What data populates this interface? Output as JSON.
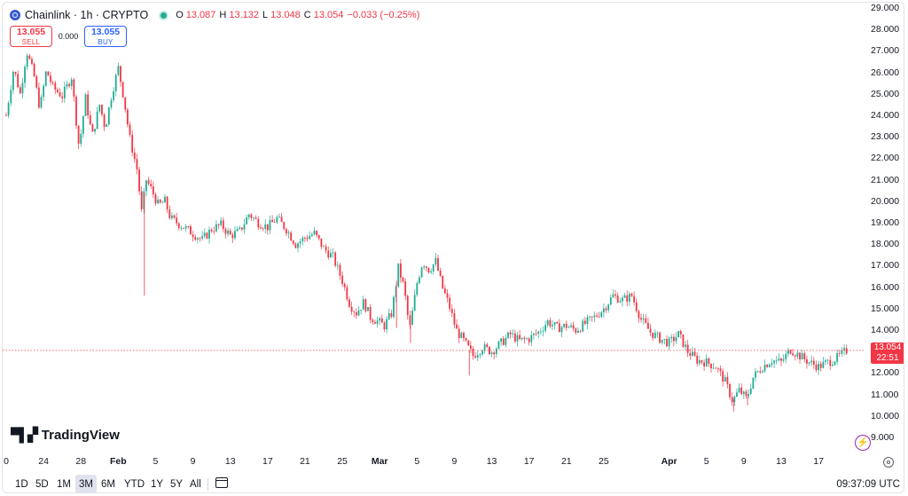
{
  "header": {
    "symbol": "Chainlink · 1h · CRYPTO",
    "ohlc": [
      {
        "label": "O",
        "value": "13.087"
      },
      {
        "label": "H",
        "value": "13.132"
      },
      {
        "label": "L",
        "value": "13.048"
      },
      {
        "label": "C",
        "value": "13.054"
      }
    ],
    "change": "−0.033 (−0.25%)"
  },
  "trade": {
    "sell_price": "13.055",
    "sell_label": "SELL",
    "spread": "0.000",
    "buy_price": "13.055",
    "buy_label": "BUY"
  },
  "current_price": {
    "value": "13.054",
    "countdown": "22:51"
  },
  "watermark": "TradingView",
  "ranges": [
    "1D",
    "5D",
    "1M",
    "3M",
    "6M",
    "YTD",
    "1Y",
    "5Y",
    "All"
  ],
  "active_range": "3M",
  "utc_time": "09:37:09 UTC",
  "colors": {
    "up": "#22ab94",
    "down": "#f23645",
    "accent": "#2962ff",
    "logo": "#375bd2"
  },
  "chart_data": {
    "type": "candlestick",
    "title": "Chainlink · 1h · CRYPTO",
    "ylim": [
      8.5,
      29.0
    ],
    "y_ticks": [
      "29.000",
      "28.000",
      "27.000",
      "26.000",
      "25.000",
      "24.000",
      "23.000",
      "22.000",
      "21.000",
      "20.000",
      "19.000",
      "18.000",
      "17.000",
      "16.000",
      "15.000",
      "14.000",
      "13.000",
      "12.000",
      "11.000",
      "10.000",
      "9.000"
    ],
    "x_ticks": [
      {
        "label": "0",
        "day": 0
      },
      {
        "label": "24",
        "day": 4
      },
      {
        "label": "28",
        "day": 8
      },
      {
        "label": "Feb",
        "day": 12,
        "bold": true
      },
      {
        "label": "5",
        "day": 16
      },
      {
        "label": "9",
        "day": 20
      },
      {
        "label": "13",
        "day": 24
      },
      {
        "label": "17",
        "day": 28
      },
      {
        "label": "21",
        "day": 32
      },
      {
        "label": "25",
        "day": 36
      },
      {
        "label": "Mar",
        "day": 40,
        "bold": true
      },
      {
        "label": "5",
        "day": 44
      },
      {
        "label": "9",
        "day": 48
      },
      {
        "label": "13",
        "day": 52
      },
      {
        "label": "17",
        "day": 56
      },
      {
        "label": "21",
        "day": 60
      },
      {
        "label": "25",
        "day": 64
      },
      {
        "label": "Apr",
        "day": 71,
        "bold": true
      },
      {
        "label": "5",
        "day": 75
      },
      {
        "label": "9",
        "day": 79
      },
      {
        "label": "13",
        "day": 83
      },
      {
        "label": "17",
        "day": 87
      }
    ],
    "price_path": [
      [
        0,
        24.0
      ],
      [
        0.8,
        26.2
      ],
      [
        1.5,
        25.0
      ],
      [
        2.2,
        27.0
      ],
      [
        3,
        25.8
      ],
      [
        3.6,
        24.3
      ],
      [
        4.3,
        26.1
      ],
      [
        5,
        25.3
      ],
      [
        6,
        24.9
      ],
      [
        7,
        25.8
      ],
      [
        7.8,
        22.5
      ],
      [
        8.5,
        24.8
      ],
      [
        9.2,
        23.0
      ],
      [
        10,
        24.5
      ],
      [
        10.6,
        23.4
      ],
      [
        11.3,
        25.0
      ],
      [
        12,
        26.2
      ],
      [
        12.6,
        24.8
      ],
      [
        13.2,
        23.0
      ],
      [
        14,
        21.5
      ],
      [
        14.5,
        19.5
      ],
      [
        15,
        21.0
      ],
      [
        15.6,
        20.5
      ],
      [
        16.3,
        19.8
      ],
      [
        17,
        20.0
      ],
      [
        17.6,
        19.2
      ],
      [
        18.3,
        19.0
      ],
      [
        19,
        18.8
      ],
      [
        20,
        18.5
      ],
      [
        21,
        18.2
      ],
      [
        22,
        18.7
      ],
      [
        23,
        18.9
      ],
      [
        24,
        18.4
      ],
      [
        25,
        18.6
      ],
      [
        26,
        19.4
      ],
      [
        27,
        19.0
      ],
      [
        28,
        18.8
      ],
      [
        29,
        19.2
      ],
      [
        30,
        18.7
      ],
      [
        31,
        18.0
      ],
      [
        32,
        18.3
      ],
      [
        33,
        18.5
      ],
      [
        34,
        17.8
      ],
      [
        35,
        17.4
      ],
      [
        36,
        16.3
      ],
      [
        36.8,
        15.2
      ],
      [
        37.5,
        14.8
      ],
      [
        38.3,
        15.3
      ],
      [
        39,
        14.6
      ],
      [
        39.8,
        14.4
      ],
      [
        40.5,
        14.2
      ],
      [
        41.3,
        14.8
      ],
      [
        42,
        16.9
      ],
      [
        42.6,
        16.0
      ],
      [
        43.2,
        14.0
      ],
      [
        44,
        16.2
      ],
      [
        44.6,
        17.2
      ],
      [
        45.3,
        16.8
      ],
      [
        46,
        17.2
      ],
      [
        46.7,
        16.0
      ],
      [
        47.4,
        15.2
      ],
      [
        48.2,
        14.0
      ],
      [
        49,
        13.5
      ],
      [
        50,
        12.8
      ],
      [
        51,
        13.2
      ],
      [
        52,
        13.0
      ],
      [
        53,
        13.4
      ],
      [
        54,
        13.8
      ],
      [
        55,
        13.5
      ],
      [
        56,
        13.6
      ],
      [
        57,
        13.9
      ],
      [
        58,
        14.4
      ],
      [
        59,
        14.1
      ],
      [
        60,
        14.2
      ],
      [
        61,
        14.0
      ],
      [
        62,
        14.3
      ],
      [
        63,
        14.6
      ],
      [
        64,
        15.0
      ],
      [
        65,
        15.6
      ],
      [
        66,
        15.4
      ],
      [
        67,
        15.6
      ],
      [
        68,
        14.5
      ],
      [
        69,
        13.9
      ],
      [
        70,
        13.6
      ],
      [
        71,
        13.4
      ],
      [
        72,
        13.8
      ],
      [
        73,
        13.0
      ],
      [
        74,
        12.6
      ],
      [
        75,
        12.5
      ],
      [
        76,
        12.3
      ],
      [
        77,
        11.6
      ],
      [
        77.8,
        10.7
      ],
      [
        78.5,
        11.2
      ],
      [
        79.3,
        10.8
      ],
      [
        80,
        11.8
      ],
      [
        81,
        12.3
      ],
      [
        82,
        12.6
      ],
      [
        83,
        12.5
      ],
      [
        84,
        13.1
      ],
      [
        85,
        12.8
      ],
      [
        86,
        12.5
      ],
      [
        87,
        12.3
      ],
      [
        88,
        12.5
      ],
      [
        89,
        12.7
      ],
      [
        90,
        13.05
      ]
    ]
  }
}
